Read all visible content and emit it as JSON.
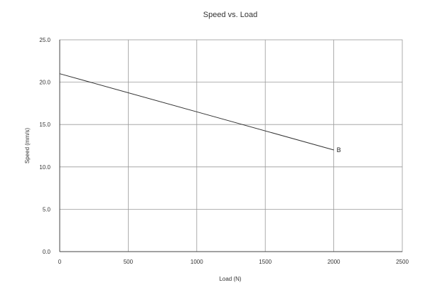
{
  "chart_data": {
    "type": "line",
    "title": "Speed vs. Load",
    "xlabel": "Load (N)",
    "ylabel": "Speed (mm/s)",
    "xlim": [
      0,
      2500
    ],
    "ylim": [
      0,
      25
    ],
    "x_ticks": [
      0,
      500,
      1000,
      1500,
      2000,
      2500
    ],
    "y_ticks": [
      0,
      5,
      10,
      15,
      20,
      25
    ],
    "x_tick_labels": [
      "0",
      "500",
      "1000",
      "1500",
      "2000",
      "2500"
    ],
    "y_tick_labels": [
      "0.0",
      "5.0",
      "10.0",
      "15.0",
      "20.0",
      "25.0"
    ],
    "grid": true,
    "series": [
      {
        "name": "B",
        "x": [
          0,
          1000,
          2000
        ],
        "y": [
          21.0,
          16.5,
          12.0
        ]
      }
    ]
  }
}
